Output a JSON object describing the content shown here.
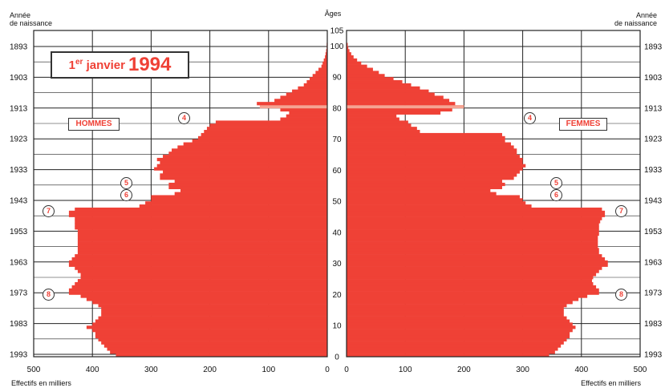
{
  "header": {
    "left_label_line1": "Année",
    "left_label_line2": "de naissance",
    "right_label_line1": "Année",
    "right_label_line2": "de naissance",
    "ages_title": "Âges"
  },
  "title": {
    "prefix": "1",
    "sup": "er",
    "text": "janvier",
    "year": "1994"
  },
  "sex_labels": {
    "men": "HOMMES",
    "women": "FEMMES"
  },
  "footer": {
    "left": "Effectifs en milliers",
    "right": "Effectifs en milliers"
  },
  "callouts": {
    "men": [
      {
        "label": "4",
        "age": 77
      },
      {
        "label": "5",
        "age": 56
      },
      {
        "label": "6",
        "age": 52
      },
      {
        "label": "7",
        "age": 47
      },
      {
        "label": "8",
        "age": 20
      }
    ],
    "women": [
      {
        "label": "4",
        "age": 77
      },
      {
        "label": "5",
        "age": 56
      },
      {
        "label": "6",
        "age": 52
      },
      {
        "label": "7",
        "age": 47
      },
      {
        "label": "8",
        "age": 20
      }
    ]
  },
  "chart_data": {
    "type": "bar",
    "orientation": "horizontal-pyramid",
    "bar_color": "#ef4136",
    "highlight_color": "#f5a493",
    "highlight_age": 80,
    "age_ticks": [
      0,
      10,
      20,
      30,
      40,
      50,
      60,
      70,
      80,
      90,
      100,
      105
    ],
    "birth_year_ticks": [
      1893,
      1903,
      1913,
      1923,
      1933,
      1943,
      1953,
      1963,
      1973,
      1983,
      1993
    ],
    "x_ticks_men": [
      500,
      400,
      300,
      200,
      100,
      0
    ],
    "x_ticks_women": [
      0,
      100,
      200,
      300,
      400,
      500
    ],
    "xlim": [
      0,
      500
    ],
    "ylim": [
      0,
      105
    ],
    "series": [
      {
        "name": "HOMMES",
        "ages": [
          0,
          1,
          2,
          3,
          4,
          5,
          6,
          7,
          8,
          9,
          10,
          11,
          12,
          13,
          14,
          15,
          16,
          17,
          18,
          19,
          20,
          21,
          22,
          23,
          24,
          25,
          26,
          27,
          28,
          29,
          30,
          31,
          32,
          33,
          34,
          35,
          36,
          37,
          38,
          39,
          40,
          41,
          42,
          43,
          44,
          45,
          46,
          47,
          48,
          49,
          50,
          51,
          52,
          53,
          54,
          55,
          56,
          57,
          58,
          59,
          60,
          61,
          62,
          63,
          64,
          65,
          66,
          67,
          68,
          69,
          70,
          71,
          72,
          73,
          74,
          75,
          76,
          77,
          78,
          79,
          80,
          81,
          82,
          83,
          84,
          85,
          86,
          87,
          88,
          89,
          90,
          91,
          92,
          93,
          94,
          95,
          96,
          97,
          98,
          99,
          100
        ],
        "values": [
          360,
          370,
          375,
          380,
          385,
          390,
          395,
          395,
          400,
          410,
          400,
          395,
          390,
          385,
          385,
          385,
          390,
          400,
          410,
          420,
          440,
          440,
          435,
          430,
          425,
          420,
          420,
          425,
          430,
          440,
          440,
          435,
          430,
          425,
          425,
          425,
          425,
          425,
          425,
          425,
          425,
          430,
          430,
          430,
          430,
          440,
          440,
          430,
          320,
          310,
          300,
          300,
          260,
          250,
          270,
          270,
          260,
          285,
          285,
          280,
          295,
          290,
          285,
          290,
          280,
          270,
          265,
          255,
          245,
          230,
          220,
          215,
          210,
          205,
          200,
          190,
          80,
          70,
          65,
          80,
          115,
          120,
          90,
          80,
          70,
          60,
          50,
          40,
          35,
          30,
          25,
          20,
          15,
          10,
          8,
          6,
          4,
          3,
          2,
          1,
          1
        ]
      },
      {
        "name": "FEMMES",
        "ages": [
          0,
          1,
          2,
          3,
          4,
          5,
          6,
          7,
          8,
          9,
          10,
          11,
          12,
          13,
          14,
          15,
          16,
          17,
          18,
          19,
          20,
          21,
          22,
          23,
          24,
          25,
          26,
          27,
          28,
          29,
          30,
          31,
          32,
          33,
          34,
          35,
          36,
          37,
          38,
          39,
          40,
          41,
          42,
          43,
          44,
          45,
          46,
          47,
          48,
          49,
          50,
          51,
          52,
          53,
          54,
          55,
          56,
          57,
          58,
          59,
          60,
          61,
          62,
          63,
          64,
          65,
          66,
          67,
          68,
          69,
          70,
          71,
          72,
          73,
          74,
          75,
          76,
          77,
          78,
          79,
          80,
          81,
          82,
          83,
          84,
          85,
          86,
          87,
          88,
          89,
          90,
          91,
          92,
          93,
          94,
          95,
          96,
          97,
          98,
          99,
          100
        ],
        "values": [
          345,
          355,
          360,
          365,
          370,
          375,
          380,
          380,
          385,
          390,
          385,
          380,
          375,
          370,
          370,
          370,
          375,
          385,
          395,
          410,
          430,
          430,
          425,
          420,
          418,
          420,
          425,
          430,
          435,
          445,
          445,
          440,
          435,
          430,
          430,
          428,
          428,
          428,
          428,
          430,
          430,
          430,
          430,
          432,
          435,
          440,
          440,
          435,
          315,
          305,
          300,
          295,
          255,
          245,
          265,
          270,
          265,
          285,
          290,
          295,
          300,
          305,
          300,
          300,
          295,
          290,
          290,
          285,
          280,
          270,
          270,
          265,
          125,
          120,
          110,
          105,
          90,
          85,
          160,
          180,
          200,
          185,
          175,
          165,
          150,
          140,
          125,
          110,
          95,
          80,
          65,
          55,
          45,
          35,
          25,
          18,
          12,
          8,
          5,
          3,
          2
        ]
      }
    ]
  }
}
